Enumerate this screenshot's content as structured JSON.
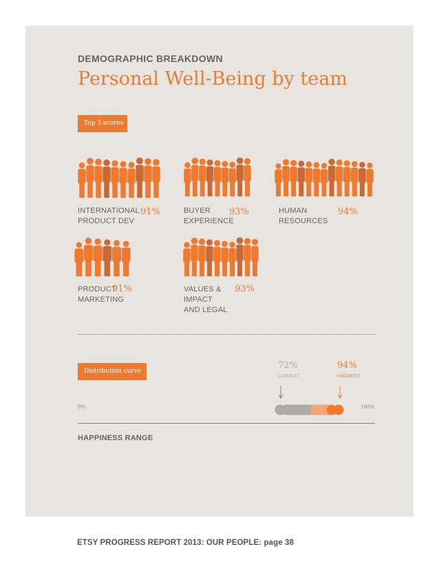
{
  "header": {
    "kicker": "DEMOGRAPHIC BREAKDOWN",
    "title": "Personal Well-Being by team",
    "top_scores_label": "Top 3 scores"
  },
  "teams": [
    {
      "name": "INTERNATIONAL\nPRODUCT DEV",
      "score": "91%"
    },
    {
      "name": "BUYER\nEXPERIENCE",
      "score": "93%"
    },
    {
      "name": "HUMAN\nRESOURCES",
      "score": "94%"
    },
    {
      "name": "PRODUCT\nMARKETING",
      "score": "91%"
    },
    {
      "name": "VALUES &\nIMPACT\nAND LEGAL",
      "score": "93%"
    }
  ],
  "distribution": {
    "label": "Distribution curve",
    "lowest_value": "72%",
    "lowest_label": "LOWEST",
    "highest_value": "94%",
    "highest_label": "HIGHEST",
    "axis_min_label": "0%",
    "axis_max_label": "100%",
    "range_label": "HAPPINESS RANGE"
  },
  "colors": {
    "accent": "#ee7a30",
    "accent_light": "#f3a57a",
    "gray": "#b1aaa4",
    "text": "#6a625c",
    "panel": "#e8e5e1"
  },
  "footer": {
    "text": "ETSY PROGRESS REPORT 2013: OUR PEOPLE: page 38"
  }
}
